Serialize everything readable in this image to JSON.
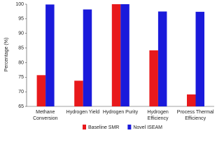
{
  "chart_data": {
    "type": "bar",
    "y_label": "Percentage (%)",
    "categories": [
      "Methane Conversion",
      "Hydrogen Yield",
      "Hydrogen Purity",
      "Hydrogen Efficiency",
      "Process Thermal Efficiency"
    ],
    "series": [
      {
        "name": "Baseline SMR",
        "color": "#e8191c",
        "values": [
          75.7,
          73.8,
          100,
          84.2,
          69.1
        ]
      },
      {
        "name": "Novel ISEAM",
        "color": "#1a1adb",
        "values": [
          99.9,
          98.2,
          100,
          97.5,
          97.4
        ]
      }
    ],
    "ylim": [
      65,
      100
    ],
    "yticks": [
      65,
      70,
      75,
      80,
      85,
      90,
      95,
      100
    ],
    "grid": false,
    "legend": "bottom"
  }
}
